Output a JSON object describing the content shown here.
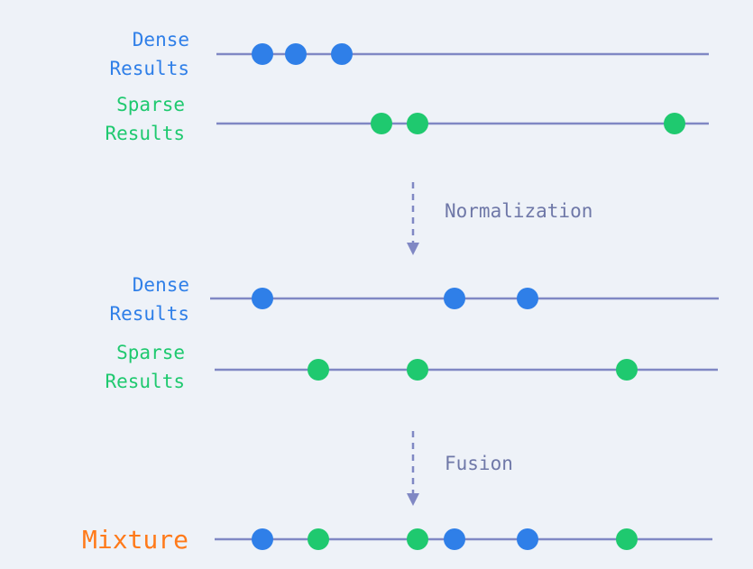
{
  "colors": {
    "dense": "#2f7fe8",
    "sparse": "#1fc96f",
    "mixture": "#ff7a1a",
    "line": "#8088c4",
    "step_text": "#6f78a8",
    "background": "#eef2f8"
  },
  "stage1": {
    "dense_label_line1": "Dense",
    "dense_label_line2": "Results",
    "sparse_label_line1": "Sparse",
    "sparse_label_line2": "Results"
  },
  "arrow1": {
    "label": "Normalization"
  },
  "stage2": {
    "dense_label_line1": "Dense",
    "dense_label_line2": "Results",
    "sparse_label_line1": "Sparse",
    "sparse_label_line2": "Results"
  },
  "arrow2": {
    "label": "Fusion"
  },
  "stage3": {
    "mixture_label": "Mixture"
  }
}
